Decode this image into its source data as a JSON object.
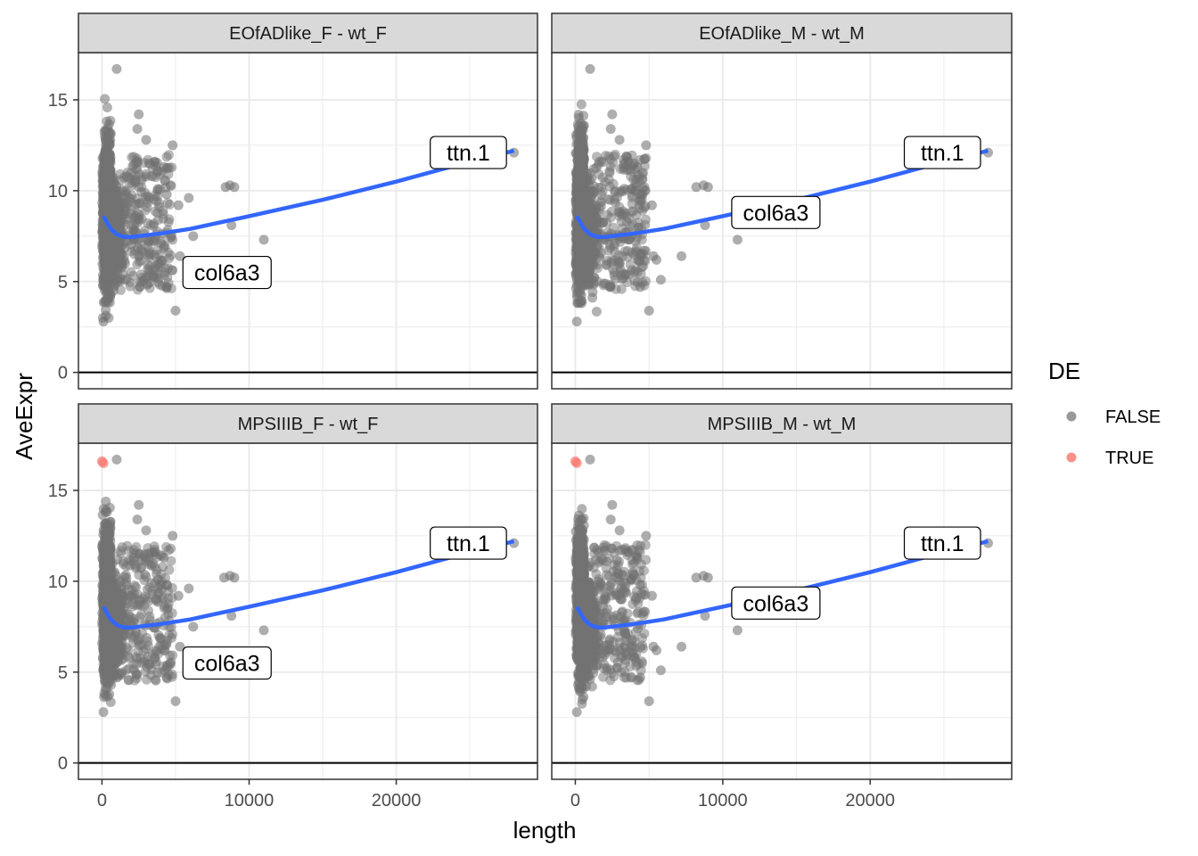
{
  "chart_data": {
    "type": "scatter",
    "xlabel": "length",
    "ylabel": "AveExpr",
    "xlim": [
      -1600,
      29600
    ],
    "ylim": [
      -0.9,
      17.6
    ],
    "x_ticks": [
      0,
      10000,
      20000
    ],
    "y_ticks": [
      0,
      5,
      10,
      15
    ],
    "x_tick_labels": [
      "0",
      "10000",
      "20000"
    ],
    "y_tick_labels": [
      "0",
      "5",
      "10",
      "15"
    ],
    "grid": true,
    "hline_y": 0,
    "legend": {
      "title": "DE",
      "placement": "right",
      "entries": [
        {
          "label": "FALSE",
          "color": "#808080"
        },
        {
          "label": "TRUE",
          "color": "#F8766D"
        }
      ]
    },
    "colors": {
      "point_false": "#6B6B6B",
      "point_true": "#F8766D",
      "smooth_line": "#3366FF",
      "strip_bg": "#D9D9D9",
      "grid": "#EBEBEB",
      "axis_text": "#4D4D4D"
    },
    "panels": [
      {
        "strip": "EOfADlike_F - wt_F",
        "smooth": [
          [
            100,
            8.6
          ],
          [
            300,
            8.3
          ],
          [
            600,
            7.9
          ],
          [
            1000,
            7.6
          ],
          [
            1500,
            7.45
          ],
          [
            2000,
            7.45
          ],
          [
            3000,
            7.55
          ],
          [
            4000,
            7.65
          ],
          [
            6000,
            7.9
          ],
          [
            10000,
            8.6
          ],
          [
            15000,
            9.5
          ],
          [
            20000,
            10.5
          ],
          [
            25000,
            11.6
          ],
          [
            28000,
            12.2
          ]
        ],
        "sparse_points": [
          [
            28000,
            12.1
          ],
          [
            9000,
            10.2
          ],
          [
            8700,
            10.3
          ],
          [
            8400,
            10.2
          ],
          [
            8800,
            8.1
          ],
          [
            11000,
            7.3
          ],
          [
            5000,
            3.4
          ],
          [
            4800,
            12.5
          ],
          [
            4200,
            11.3
          ],
          [
            2500,
            14.2
          ],
          [
            2400,
            13.4
          ],
          [
            3600,
            11.6
          ],
          [
            3800,
            10.1
          ],
          [
            4400,
            9.8
          ],
          [
            5900,
            9.6
          ],
          [
            6200,
            7.5
          ],
          [
            5300,
            6.4
          ],
          [
            5800,
            5.1
          ],
          [
            4400,
            4.7
          ],
          [
            1000,
            16.7
          ],
          [
            100,
            2.8
          ],
          [
            3000,
            12.8
          ],
          [
            5200,
            9.2
          ]
        ],
        "labels": [
          {
            "text": "ttn.1",
            "x": 24900,
            "y": 12.1
          },
          {
            "text": "col6a3",
            "x": 8500,
            "y": 5.5
          }
        ]
      },
      {
        "strip": "EOfADlike_M - wt_M",
        "smooth": [
          [
            100,
            8.6
          ],
          [
            300,
            8.3
          ],
          [
            600,
            7.9
          ],
          [
            1000,
            7.6
          ],
          [
            1500,
            7.45
          ],
          [
            2000,
            7.45
          ],
          [
            3000,
            7.55
          ],
          [
            4000,
            7.65
          ],
          [
            6000,
            7.9
          ],
          [
            10000,
            8.6
          ],
          [
            15000,
            9.5
          ],
          [
            20000,
            10.5
          ],
          [
            25000,
            11.6
          ],
          [
            28000,
            12.2
          ]
        ],
        "sparse_points": [
          [
            28000,
            12.1
          ],
          [
            9000,
            10.2
          ],
          [
            8700,
            10.3
          ],
          [
            8200,
            10.2
          ],
          [
            8800,
            8.1
          ],
          [
            11000,
            7.3
          ],
          [
            5000,
            3.4
          ],
          [
            4800,
            12.5
          ],
          [
            4200,
            11.3
          ],
          [
            2500,
            14.2
          ],
          [
            2400,
            13.4
          ],
          [
            3600,
            11.6
          ],
          [
            3800,
            10.1
          ],
          [
            4400,
            9.8
          ],
          [
            5500,
            6.2
          ],
          [
            7200,
            6.4
          ],
          [
            5300,
            6.4
          ],
          [
            5800,
            5.1
          ],
          [
            4400,
            4.7
          ],
          [
            1000,
            16.7
          ],
          [
            100,
            2.8
          ],
          [
            3000,
            12.8
          ],
          [
            5200,
            9.2
          ]
        ],
        "labels": [
          {
            "text": "ttn.1",
            "x": 24900,
            "y": 12.1
          },
          {
            "text": "col6a3",
            "x": 13600,
            "y": 8.8
          }
        ]
      },
      {
        "strip": "MPSIIIB_F - wt_F",
        "true_points": [
          [
            0,
            16.6
          ],
          [
            100,
            16.5
          ]
        ],
        "smooth": [
          [
            100,
            8.6
          ],
          [
            300,
            8.3
          ],
          [
            600,
            7.9
          ],
          [
            1000,
            7.6
          ],
          [
            1500,
            7.45
          ],
          [
            2000,
            7.45
          ],
          [
            3000,
            7.55
          ],
          [
            4000,
            7.65
          ],
          [
            6000,
            7.9
          ],
          [
            10000,
            8.6
          ],
          [
            15000,
            9.5
          ],
          [
            20000,
            10.5
          ],
          [
            25000,
            11.6
          ],
          [
            28000,
            12.2
          ]
        ],
        "sparse_points": [
          [
            28000,
            12.1
          ],
          [
            9000,
            10.2
          ],
          [
            8700,
            10.3
          ],
          [
            8300,
            10.2
          ],
          [
            8800,
            8.1
          ],
          [
            11000,
            7.3
          ],
          [
            5000,
            3.4
          ],
          [
            4800,
            12.5
          ],
          [
            4200,
            11.3
          ],
          [
            2500,
            14.2
          ],
          [
            2400,
            13.4
          ],
          [
            3600,
            11.6
          ],
          [
            3800,
            10.1
          ],
          [
            4400,
            9.8
          ],
          [
            5900,
            9.6
          ],
          [
            6200,
            7.5
          ],
          [
            5300,
            6.4
          ],
          [
            5800,
            5.1
          ],
          [
            4400,
            4.7
          ],
          [
            1000,
            16.7
          ],
          [
            100,
            2.8
          ],
          [
            3000,
            12.8
          ],
          [
            5200,
            9.2
          ]
        ],
        "labels": [
          {
            "text": "ttn.1",
            "x": 24900,
            "y": 12.1
          },
          {
            "text": "col6a3",
            "x": 8500,
            "y": 5.5
          }
        ]
      },
      {
        "strip": "MPSIIIB_M - wt_M",
        "true_points": [
          [
            0,
            16.6
          ],
          [
            100,
            16.5
          ]
        ],
        "smooth": [
          [
            100,
            8.6
          ],
          [
            300,
            8.3
          ],
          [
            600,
            7.9
          ],
          [
            1000,
            7.6
          ],
          [
            1500,
            7.45
          ],
          [
            2000,
            7.45
          ],
          [
            3000,
            7.55
          ],
          [
            4000,
            7.65
          ],
          [
            6000,
            7.9
          ],
          [
            10000,
            8.6
          ],
          [
            15000,
            9.5
          ],
          [
            20000,
            10.5
          ],
          [
            25000,
            11.6
          ],
          [
            28000,
            12.2
          ]
        ],
        "sparse_points": [
          [
            28000,
            12.1
          ],
          [
            9000,
            10.2
          ],
          [
            8700,
            10.3
          ],
          [
            8200,
            10.2
          ],
          [
            8800,
            8.1
          ],
          [
            11000,
            7.3
          ],
          [
            5000,
            3.4
          ],
          [
            4800,
            12.5
          ],
          [
            4200,
            11.3
          ],
          [
            2500,
            14.2
          ],
          [
            2400,
            13.4
          ],
          [
            3600,
            11.6
          ],
          [
            3800,
            10.1
          ],
          [
            4400,
            9.8
          ],
          [
            5500,
            6.2
          ],
          [
            7200,
            6.4
          ],
          [
            5300,
            6.4
          ],
          [
            5800,
            5.1
          ],
          [
            4400,
            4.7
          ],
          [
            1000,
            16.7
          ],
          [
            100,
            2.8
          ],
          [
            3000,
            12.8
          ],
          [
            5200,
            9.2
          ]
        ],
        "labels": [
          {
            "text": "ttn.1",
            "x": 24900,
            "y": 12.1
          },
          {
            "text": "col6a3",
            "x": 13600,
            "y": 8.8
          }
        ]
      }
    ]
  }
}
